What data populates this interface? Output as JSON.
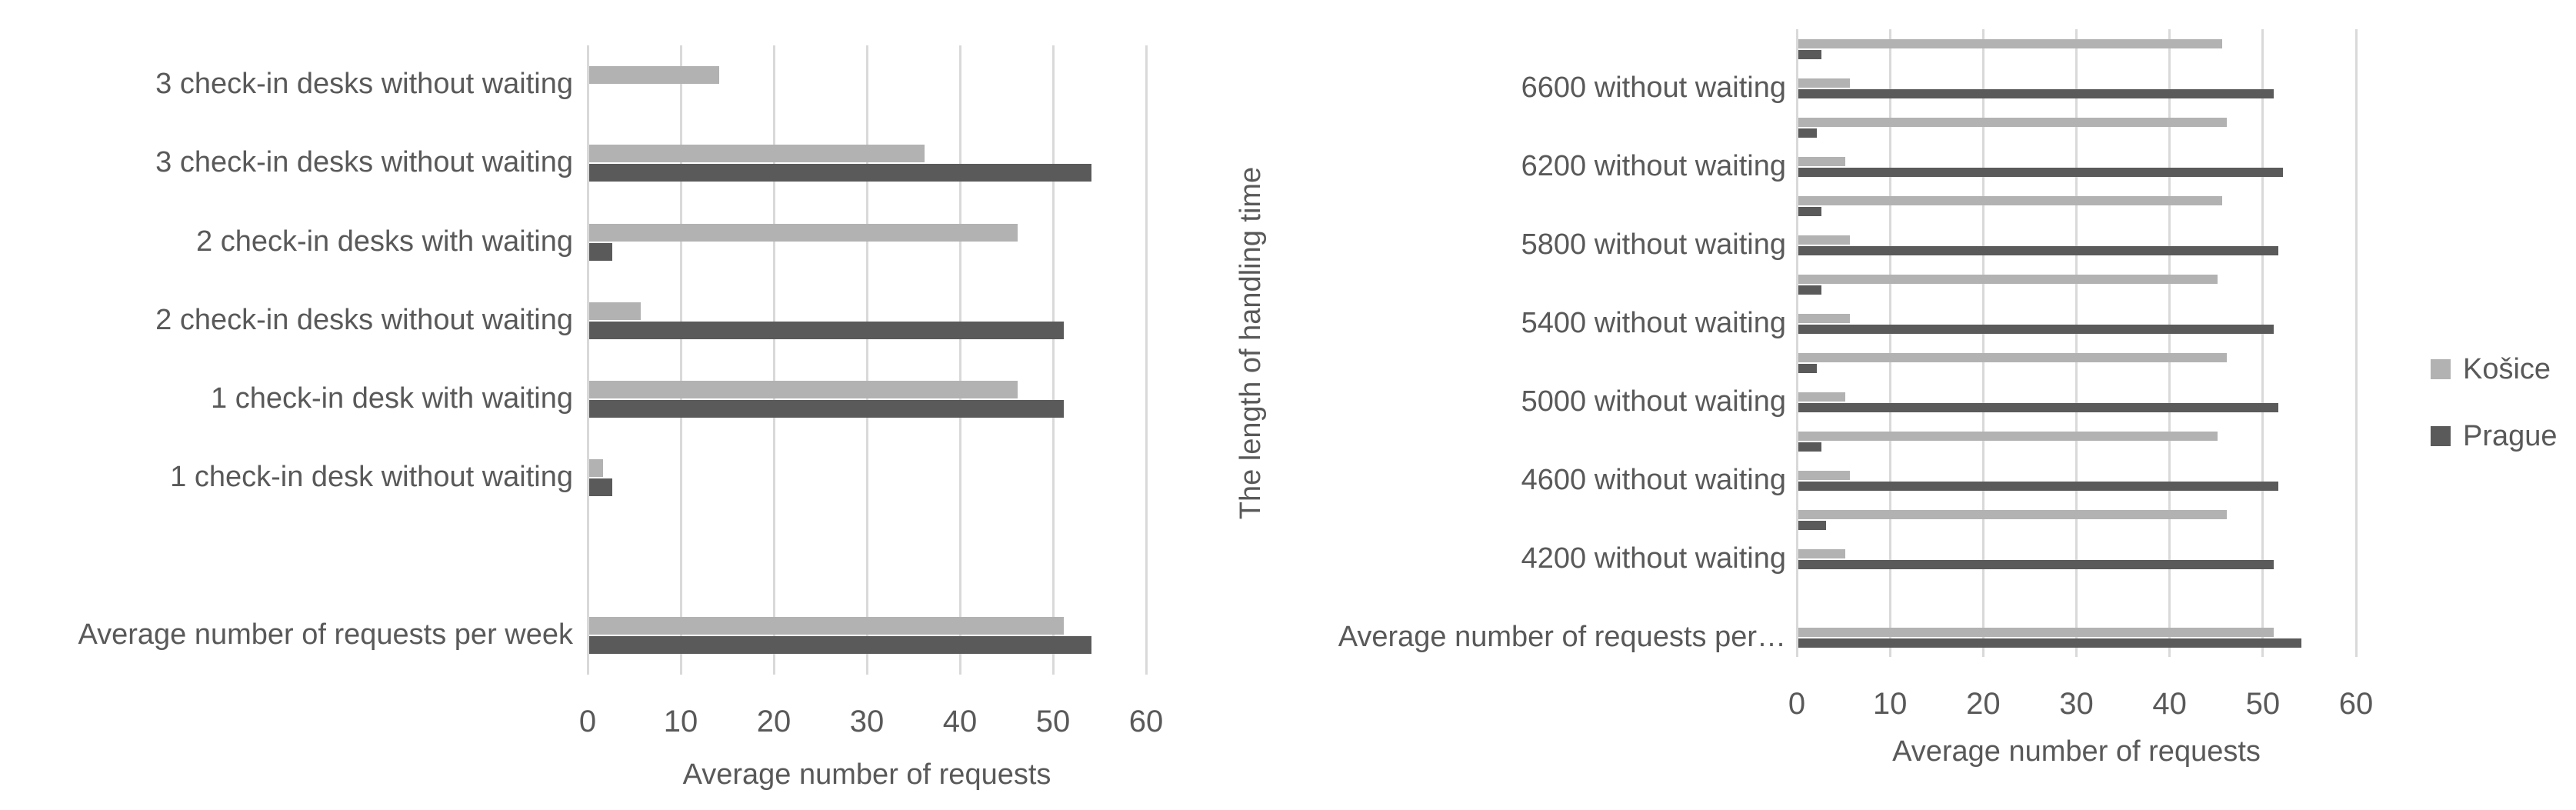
{
  "figure": {
    "background": "#ffffff",
    "text_color": "#595959",
    "gridline_color": "#d9d9d9"
  },
  "legend": {
    "position": "right-middle",
    "items": [
      {
        "label": "Košice",
        "color": "#b2b2b2"
      },
      {
        "label": "Prague",
        "color": "#5a5a5a"
      }
    ]
  },
  "chart_data": [
    {
      "type": "bar",
      "orientation": "horizontal",
      "title": "",
      "xlabel": "Average number of requests",
      "ylabel": "",
      "xlim": [
        0,
        60
      ],
      "xticks": [
        0,
        10,
        20,
        30,
        40,
        50,
        60
      ],
      "grid": true,
      "legend_position": "none",
      "categories": [
        "3 check-in desks without waiting",
        "3 check-in desks without waiting",
        "2 check-in desks with waiting",
        "2 check-in desks without waiting",
        "1 check-in desk with waiting",
        "1 check-in desk without waiting",
        "",
        "Average number of requests per week"
      ],
      "series": [
        {
          "name": "Košice",
          "color": "#b2b2b2",
          "values": [
            14,
            36,
            46,
            5.5,
            46,
            1.5,
            null,
            51
          ]
        },
        {
          "name": "Prague",
          "color": "#5a5a5a",
          "values": [
            null,
            54,
            2.5,
            51,
            51,
            2.5,
            null,
            54
          ]
        }
      ]
    },
    {
      "type": "bar",
      "orientation": "horizontal",
      "title": "",
      "xlabel": "Average number of requests",
      "ylabel": "The length of handling time",
      "xlim": [
        0,
        60
      ],
      "xticks": [
        0,
        10,
        20,
        30,
        40,
        50,
        60
      ],
      "grid": true,
      "legend_position": "figure-right",
      "categories": [
        "",
        "6600 without waiting",
        "",
        "6200 without waiting",
        "",
        "5800 without waiting",
        "",
        "5400 without waiting",
        "",
        "5000 without waiting",
        "",
        "4600 without waiting",
        "",
        "4200 without waiting",
        "",
        "Average number of requests per…"
      ],
      "series": [
        {
          "name": "Košice",
          "color": "#b2b2b2",
          "values": [
            45.5,
            5.5,
            46,
            5,
            45.5,
            5.5,
            45,
            5.5,
            46,
            5,
            45,
            5.5,
            46,
            5,
            null,
            51
          ]
        },
        {
          "name": "Prague",
          "color": "#5a5a5a",
          "values": [
            2.5,
            51,
            2,
            52,
            2.5,
            51.5,
            2.5,
            51,
            2,
            51.5,
            2.5,
            51.5,
            3,
            51,
            null,
            54
          ]
        }
      ]
    }
  ]
}
